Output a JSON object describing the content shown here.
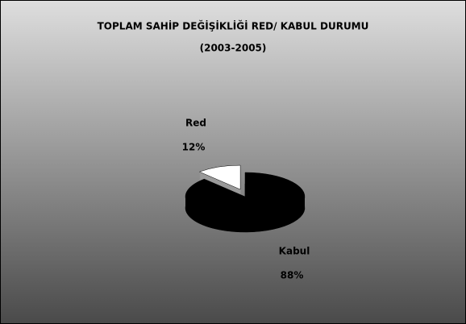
{
  "chart_data": {
    "type": "pie",
    "title": "TOPLAM SAHİP DEĞİŞİKLİĞİ RED/ KABUL DURUMU",
    "subtitle": "(2003-2005)",
    "categories": [
      "Red",
      "Kabul"
    ],
    "values": [
      12,
      88
    ],
    "value_labels": [
      "12%",
      "88%"
    ],
    "colors": [
      "#ffffff",
      "#000000"
    ]
  }
}
